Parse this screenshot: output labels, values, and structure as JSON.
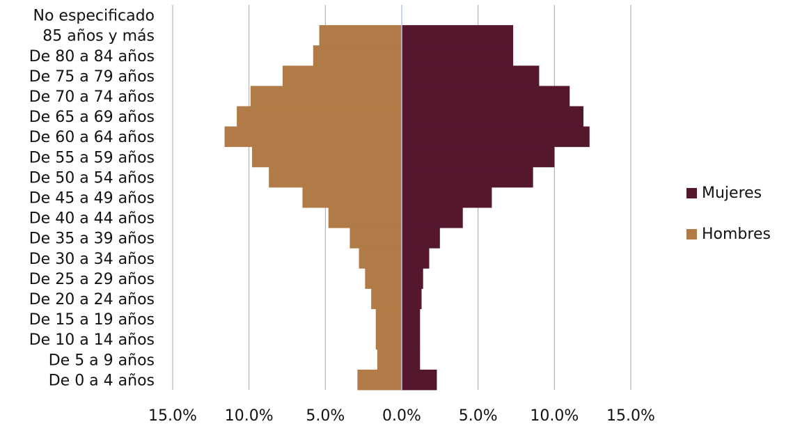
{
  "chart_data": {
    "type": "bar",
    "orientation": "horizontal",
    "layout": "population-pyramid",
    "categories": [
      "De 0 a 4 años",
      "De 5 a 9 años",
      "De 10 a 14 años",
      "De 15 a 19 años",
      "De 20 a 24 años",
      "De 25 a 29 años",
      "De 30 a 34 años",
      "De 35 a 39 años",
      "De 40 a 44 años",
      "De 45 a 49 años",
      "De 50 a 54 años",
      "De 55 a 59 años",
      "De 60 a 64 años",
      "De 65 a 69 años",
      "De 70 a 74 años",
      "De 75 a 79 años",
      "De 80 a 84 años",
      "85 años y más",
      "No especificado"
    ],
    "series": [
      {
        "name": "Mujeres",
        "color": "#54172e",
        "side": "right",
        "values": [
          2.3,
          1.2,
          1.2,
          1.2,
          1.3,
          1.4,
          1.8,
          2.5,
          4.0,
          5.9,
          8.6,
          10.0,
          12.3,
          11.9,
          11.0,
          9.0,
          7.3,
          7.3,
          0.0
        ]
      },
      {
        "name": "Hombres",
        "color": "#b07b46",
        "side": "left",
        "values": [
          2.9,
          1.6,
          1.7,
          1.7,
          2.0,
          2.4,
          2.8,
          3.4,
          4.8,
          6.5,
          8.7,
          9.8,
          11.6,
          10.8,
          9.9,
          7.8,
          5.8,
          5.4,
          0.0
        ]
      }
    ],
    "xlim": [
      -15,
      15
    ],
    "xticks": [
      "15.0%",
      "10.0%",
      "5.0%",
      "0.0%",
      "5.0%",
      "10.0%",
      "15.0%"
    ],
    "grid": true,
    "legend": "right",
    "title": "",
    "xlabel": "",
    "ylabel": ""
  }
}
